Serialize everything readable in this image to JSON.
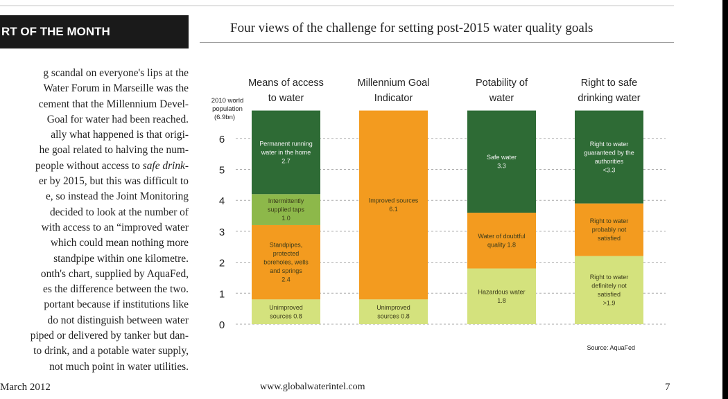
{
  "header": {
    "banner": "RT OF THE MONTH",
    "chart_title": "Four views of the challenge for setting post-2015 water quality goals"
  },
  "article_lines": [
    "g scandal on everyone's lips at the",
    "Water Forum in Marseille was the",
    "cement that the Millennium Devel-",
    "Goal for water had been reached.",
    "ally what happened is that origi-",
    "he goal related to halving the num-",
    "people without access to ",
    "er by 2015, but this was difficult to",
    "e, so instead the Joint Monitoring",
    "decided to look at the number of",
    "with access to an “improved water",
    "which could mean nothing more",
    "standpipe within one kilometre.",
    "onth's chart, supplied by AquaFed,",
    "es the difference between the two.",
    "portant because if institutions like",
    "do not distinguish between water",
    "piped or delivered by tanker but dan-",
    "to drink, and a potable water supply,",
    "not much point in water utilities."
  ],
  "article_italic": "safe drink-",
  "footer": {
    "left": "March 2012",
    "url": "www.globalwaterintel.com",
    "page": "7"
  },
  "colors": {
    "dark_green": "#2e6b35",
    "light_green": "#8db84a",
    "orange": "#f39b1f",
    "pale_green": "#d4e27d"
  },
  "chart_data": {
    "type": "bar",
    "stacked": true,
    "title": "Four views of the challenge for setting post-2015 water quality goals",
    "ylabel": "2010 world population (6.9bn)",
    "ylim": [
      0,
      6.9
    ],
    "yticks": [
      "0",
      "1",
      "2",
      "3",
      "4",
      "5",
      "6"
    ],
    "source": "Source: AquaFed",
    "categories": [
      {
        "label_lines": [
          "Means of access",
          "to water"
        ],
        "segments": [
          {
            "value": 0.8,
            "color": "pale_green",
            "label_lines": [
              "Unimproved",
              "sources 0.8"
            ]
          },
          {
            "value": 2.4,
            "color": "orange",
            "label_lines": [
              "Standpipes,",
              "protected",
              "boreholes, wells",
              "and springs",
              "2.4"
            ]
          },
          {
            "value": 1.0,
            "color": "light_green",
            "label_lines": [
              "Intermittently",
              "supplied taps",
              "1.0"
            ]
          },
          {
            "value": 2.7,
            "color": "dark_green",
            "label_lines": [
              "Permanent running",
              "water in the home",
              "2.7"
            ]
          }
        ]
      },
      {
        "label_lines": [
          "Millennium Goal",
          "Indicator"
        ],
        "segments": [
          {
            "value": 0.8,
            "color": "pale_green",
            "label_lines": [
              "Unimproved",
              "sources 0.8"
            ]
          },
          {
            "value": 6.1,
            "color": "orange",
            "label_lines": [
              "Improved sources",
              "6.1"
            ]
          }
        ]
      },
      {
        "label_lines": [
          "Potability of",
          "water"
        ],
        "segments": [
          {
            "value": 1.8,
            "color": "pale_green",
            "label_lines": [
              "Hazardous water",
              "1.8"
            ]
          },
          {
            "value": 1.8,
            "color": "orange",
            "label_lines": [
              "Water of doubtful",
              "quality 1.8"
            ]
          },
          {
            "value": 3.3,
            "color": "dark_green",
            "label_lines": [
              "Safe water",
              "3.3"
            ]
          }
        ]
      },
      {
        "label_lines": [
          "Right to safe",
          "drinking water"
        ],
        "segments": [
          {
            "value": 2.2,
            "color": "pale_green",
            "label_lines": [
              "Right to water",
              "definitely not",
              "satisfied",
              ">1.9"
            ]
          },
          {
            "value": 1.7,
            "color": "orange",
            "label_lines": [
              "Right to water",
              "probably not",
              "satisfied"
            ]
          },
          {
            "value": 3.0,
            "color": "dark_green",
            "label_lines": [
              "Right to water",
              "guaranteed by the",
              "authorities",
              "<3.3"
            ]
          }
        ]
      }
    ]
  }
}
